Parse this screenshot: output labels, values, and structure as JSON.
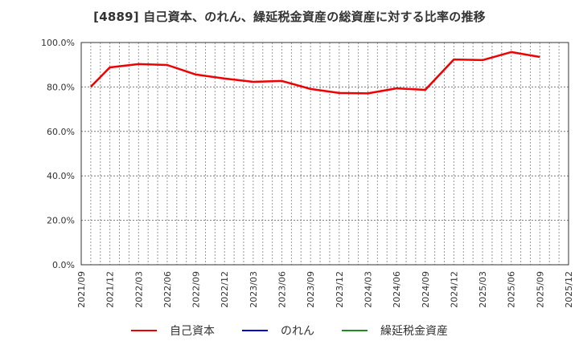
{
  "title": "[4889]  自己資本、のれん、繰延税金資産の総資産に対する比率の推移",
  "legend": [
    {
      "label": "自己資本",
      "color": "#ee0000"
    },
    {
      "label": "のれん",
      "color": "#0000dd"
    },
    {
      "label": "繰延税金資産",
      "color": "#228822"
    }
  ],
  "chart_data": {
    "type": "line",
    "title": "[4889]  自己資本、のれん、繰延税金資産の総資産に対する比率の推移",
    "xlabel": "",
    "ylabel": "",
    "ylim": [
      0,
      100
    ],
    "y_ticks": [
      "0.0%",
      "20.0%",
      "40.0%",
      "60.0%",
      "80.0%",
      "100.0%"
    ],
    "x_ticks": [
      "2021/09",
      "2021/12",
      "2022/03",
      "2022/06",
      "2022/09",
      "2022/12",
      "2023/03",
      "2023/06",
      "2023/09",
      "2023/12",
      "2024/03",
      "2024/06",
      "2024/09",
      "2024/12",
      "2025/03",
      "2025/06",
      "2025/09",
      "2025/12"
    ],
    "grid": true,
    "legend_position": "bottom",
    "x": [
      "2021/10",
      "2021/12",
      "2022/03",
      "2022/06",
      "2022/09",
      "2022/12",
      "2023/03",
      "2023/06",
      "2023/09",
      "2023/12",
      "2024/03",
      "2024/06",
      "2024/09",
      "2024/12",
      "2025/03",
      "2025/06",
      "2025/09"
    ],
    "series": [
      {
        "name": "自己資本",
        "color": "#ee0000",
        "values": [
          80.1,
          88.8,
          90.3,
          89.9,
          85.6,
          83.8,
          82.3,
          82.7,
          79.1,
          77.3,
          77.1,
          79.4,
          78.7,
          92.4,
          92.1,
          95.7,
          93.5
        ]
      },
      {
        "name": "のれん",
        "color": "#0000dd",
        "values": []
      },
      {
        "name": "繰延税金資産",
        "color": "#228822",
        "values": []
      }
    ]
  }
}
